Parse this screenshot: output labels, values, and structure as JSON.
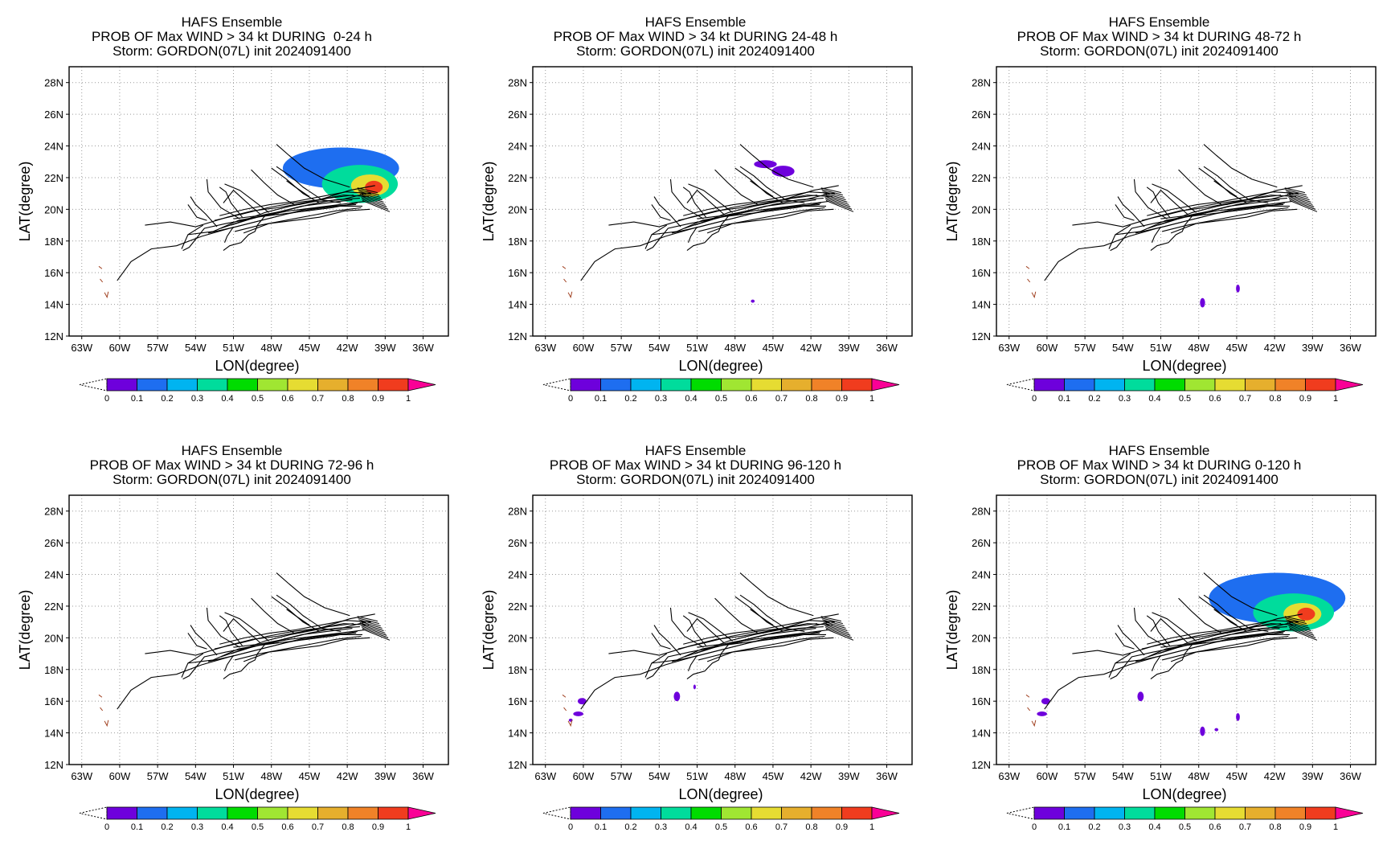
{
  "chart_data": [
    {
      "type": "heatmap",
      "title_line1": "HAFS Ensemble",
      "title_line2": "PROB OF Max WIND > 34 kt DURING  0-24 h",
      "title_line3": "Storm: GORDON(07L) init 2024091400",
      "xlabel": "LON(degree)",
      "ylabel": "LAT(degree)",
      "xlim": [
        -64,
        -34
      ],
      "ylim": [
        12,
        29
      ],
      "x_tick_labels": [
        "63W",
        "60W",
        "57W",
        "54W",
        "51W",
        "48W",
        "45W",
        "42W",
        "39W",
        "36W"
      ],
      "y_tick_labels": [
        "12N",
        "14N",
        "16N",
        "18N",
        "20N",
        "22N",
        "24N",
        "26N",
        "28N"
      ],
      "grid": "dotted",
      "prob_areas": [
        {
          "lon": -42.5,
          "lat": 22.6,
          "rlon": 4.6,
          "rlat": 1.3,
          "p": 0.12
        },
        {
          "lon": -41.0,
          "lat": 21.6,
          "rlon": 3.0,
          "rlat": 1.2,
          "p": 0.35
        },
        {
          "lon": -40.2,
          "lat": 21.5,
          "rlon": 1.5,
          "rlat": 0.7,
          "p": 0.62
        },
        {
          "lon": -39.9,
          "lat": 21.4,
          "rlon": 0.7,
          "rlat": 0.4,
          "p": 0.92
        }
      ]
    },
    {
      "type": "heatmap",
      "title_line1": "HAFS Ensemble",
      "title_line2": "PROB OF Max WIND > 34 kt DURING 24-48 h",
      "title_line3": "Storm: GORDON(07L) init 2024091400",
      "xlabel": "LON(degree)",
      "ylabel": "LAT(degree)",
      "xlim": [
        -64,
        -34
      ],
      "ylim": [
        12,
        29
      ],
      "x_tick_labels": [
        "63W",
        "60W",
        "57W",
        "54W",
        "51W",
        "48W",
        "45W",
        "42W",
        "39W",
        "36W"
      ],
      "y_tick_labels": [
        "12N",
        "14N",
        "16N",
        "18N",
        "20N",
        "22N",
        "24N",
        "26N",
        "28N"
      ],
      "grid": "dotted",
      "prob_areas": [
        {
          "lon": -45.6,
          "lat": 22.85,
          "rlon": 0.9,
          "rlat": 0.25,
          "p": 0.08
        },
        {
          "lon": -44.2,
          "lat": 22.4,
          "rlon": 0.9,
          "rlat": 0.35,
          "p": 0.08
        },
        {
          "lon": -46.6,
          "lat": 14.2,
          "rlon": 0.15,
          "rlat": 0.1,
          "p": 0.05
        }
      ]
    },
    {
      "type": "heatmap",
      "title_line1": "HAFS Ensemble",
      "title_line2": "PROB OF Max WIND > 34 kt DURING 48-72 h",
      "title_line3": "Storm: GORDON(07L) init 2024091400",
      "xlabel": "LON(degree)",
      "ylabel": "LAT(degree)",
      "xlim": [
        -64,
        -34
      ],
      "ylim": [
        12,
        29
      ],
      "x_tick_labels": [
        "63W",
        "60W",
        "57W",
        "54W",
        "51W",
        "48W",
        "45W",
        "42W",
        "39W",
        "36W"
      ],
      "y_tick_labels": [
        "12N",
        "14N",
        "16N",
        "18N",
        "20N",
        "22N",
        "24N",
        "26N",
        "28N"
      ],
      "grid": "dotted",
      "prob_areas": [
        {
          "lon": -47.7,
          "lat": 14.1,
          "rlon": 0.2,
          "rlat": 0.3,
          "p": 0.06
        },
        {
          "lon": -44.9,
          "lat": 15.0,
          "rlon": 0.15,
          "rlat": 0.25,
          "p": 0.06
        }
      ]
    },
    {
      "type": "heatmap",
      "title_line1": "HAFS Ensemble",
      "title_line2": "PROB OF Max WIND > 34 kt DURING 72-96 h",
      "title_line3": "Storm: GORDON(07L) init 2024091400",
      "xlabel": "LON(degree)",
      "ylabel": "LAT(degree)",
      "xlim": [
        -64,
        -34
      ],
      "ylim": [
        12,
        29
      ],
      "x_tick_labels": [
        "63W",
        "60W",
        "57W",
        "54W",
        "51W",
        "48W",
        "45W",
        "42W",
        "39W",
        "36W"
      ],
      "y_tick_labels": [
        "12N",
        "14N",
        "16N",
        "18N",
        "20N",
        "22N",
        "24N",
        "26N",
        "28N"
      ],
      "grid": "dotted",
      "prob_areas": []
    },
    {
      "type": "heatmap",
      "title_line1": "HAFS Ensemble",
      "title_line2": "PROB OF Max WIND > 34 kt DURING 96-120 h",
      "title_line3": "Storm: GORDON(07L) init 2024091400",
      "xlabel": "LON(degree)",
      "ylabel": "LAT(degree)",
      "xlim": [
        -64,
        -34
      ],
      "ylim": [
        12,
        29
      ],
      "x_tick_labels": [
        "63W",
        "60W",
        "57W",
        "54W",
        "51W",
        "48W",
        "45W",
        "42W",
        "39W",
        "36W"
      ],
      "y_tick_labels": [
        "12N",
        "14N",
        "16N",
        "18N",
        "20N",
        "22N",
        "24N",
        "26N",
        "28N"
      ],
      "grid": "dotted",
      "prob_areas": [
        {
          "lon": -60.1,
          "lat": 16.0,
          "rlon": 0.35,
          "rlat": 0.2,
          "p": 0.06
        },
        {
          "lon": -60.4,
          "lat": 15.2,
          "rlon": 0.4,
          "rlat": 0.15,
          "p": 0.06
        },
        {
          "lon": -61.0,
          "lat": 14.8,
          "rlon": 0.15,
          "rlat": 0.1,
          "p": 0.06
        },
        {
          "lon": -52.6,
          "lat": 16.3,
          "rlon": 0.25,
          "rlat": 0.3,
          "p": 0.06
        },
        {
          "lon": -51.2,
          "lat": 16.9,
          "rlon": 0.1,
          "rlat": 0.15,
          "p": 0.06
        }
      ]
    },
    {
      "type": "heatmap",
      "title_line1": "HAFS Ensemble",
      "title_line2": "PROB OF Max WIND > 34 kt DURING 0-120 h",
      "title_line3": "Storm: GORDON(07L) init 2024091400",
      "xlabel": "LON(degree)",
      "ylabel": "LAT(degree)",
      "xlim": [
        -64,
        -34
      ],
      "ylim": [
        12,
        29
      ],
      "x_tick_labels": [
        "63W",
        "60W",
        "57W",
        "54W",
        "51W",
        "48W",
        "45W",
        "42W",
        "39W",
        "36W"
      ],
      "y_tick_labels": [
        "12N",
        "14N",
        "16N",
        "18N",
        "20N",
        "22N",
        "24N",
        "26N",
        "28N"
      ],
      "grid": "dotted",
      "prob_areas": [
        {
          "lon": -41.8,
          "lat": 22.5,
          "rlon": 5.4,
          "rlat": 1.6,
          "p": 0.12
        },
        {
          "lon": -40.5,
          "lat": 21.6,
          "rlon": 3.2,
          "rlat": 1.2,
          "p": 0.35
        },
        {
          "lon": -39.8,
          "lat": 21.5,
          "rlon": 1.5,
          "rlat": 0.7,
          "p": 0.65
        },
        {
          "lon": -39.5,
          "lat": 21.5,
          "rlon": 0.7,
          "rlat": 0.4,
          "p": 0.92
        },
        {
          "lon": -60.1,
          "lat": 16.0,
          "rlon": 0.35,
          "rlat": 0.2,
          "p": 0.06
        },
        {
          "lon": -60.4,
          "lat": 15.2,
          "rlon": 0.4,
          "rlat": 0.15,
          "p": 0.06
        },
        {
          "lon": -52.6,
          "lat": 16.3,
          "rlon": 0.25,
          "rlat": 0.3,
          "p": 0.06
        },
        {
          "lon": -47.7,
          "lat": 14.1,
          "rlon": 0.2,
          "rlat": 0.3,
          "p": 0.06
        },
        {
          "lon": -44.9,
          "lat": 15.0,
          "rlon": 0.15,
          "rlat": 0.25,
          "p": 0.06
        },
        {
          "lon": -46.6,
          "lat": 14.2,
          "rlon": 0.15,
          "rlat": 0.1,
          "p": 0.05
        }
      ]
    }
  ],
  "colorbar": {
    "labels": [
      "0",
      "0.1",
      "0.2",
      "0.3",
      "0.4",
      "0.5",
      "0.6",
      "0.7",
      "0.8",
      "0.9",
      "1"
    ],
    "colors": [
      "#a000c8",
      "#6e00dc",
      "#1e6ef0",
      "#00b4f0",
      "#00dc9c",
      "#00dc00",
      "#a0e632",
      "#e6dc32",
      "#e6af2d",
      "#f08228",
      "#f03c1e",
      "#fa0096"
    ]
  },
  "tracks": {
    "members": [
      [
        [
          -41.0,
          20.7
        ],
        [
          -43,
          20.6
        ],
        [
          -45,
          20.3
        ],
        [
          -47,
          19.9
        ],
        [
          -49,
          19.6
        ],
        [
          -51,
          19.4
        ]
      ],
      [
        [
          -40.5,
          21.0
        ],
        [
          -42.5,
          20.6
        ],
        [
          -44.5,
          20.5
        ],
        [
          -46.5,
          20.2
        ],
        [
          -48.5,
          19.8
        ],
        [
          -50.5,
          19.2
        ],
        [
          -52,
          18.8
        ]
      ],
      [
        [
          -41.2,
          20.4
        ],
        [
          -43.2,
          20.1
        ],
        [
          -45.2,
          19.9
        ],
        [
          -47.2,
          19.7
        ],
        [
          -49.2,
          19.5
        ],
        [
          -51.2,
          19.0
        ]
      ],
      [
        [
          -40.8,
          20.2
        ],
        [
          -42.8,
          20.2
        ],
        [
          -44.8,
          20.0
        ],
        [
          -46.8,
          19.7
        ],
        [
          -48.8,
          19.3
        ],
        [
          -50.8,
          18.9
        ],
        [
          -53,
          18.5
        ]
      ],
      [
        [
          -40.3,
          20.8
        ],
        [
          -42.3,
          20.9
        ],
        [
          -44.3,
          20.6
        ],
        [
          -46.3,
          20.4
        ],
        [
          -48.3,
          20.1
        ],
        [
          -50.3,
          19.7
        ],
        [
          -52.5,
          19.3
        ]
      ],
      [
        [
          -41.5,
          20.9
        ],
        [
          -43.5,
          20.7
        ],
        [
          -45.5,
          20.4
        ],
        [
          -47.5,
          20.1
        ],
        [
          -49.5,
          19.9
        ],
        [
          -51.5,
          19.5
        ],
        [
          -54,
          18.9
        ],
        [
          -56,
          19.2
        ],
        [
          -58,
          19.0
        ]
      ],
      [
        [
          -40.6,
          20.5
        ],
        [
          -42.6,
          20.3
        ],
        [
          -44.6,
          20.1
        ],
        [
          -46.6,
          19.9
        ],
        [
          -48.6,
          19.6
        ],
        [
          -50.6,
          19.3
        ],
        [
          -52.6,
          18.6
        ],
        [
          -54.6,
          18.4
        ]
      ],
      [
        [
          -40.9,
          20.1
        ],
        [
          -42.9,
          19.9
        ],
        [
          -44.9,
          19.6
        ],
        [
          -46.9,
          19.3
        ],
        [
          -48.9,
          19.0
        ],
        [
          -50.9,
          18.6
        ]
      ],
      [
        [
          -41.3,
          20.3
        ],
        [
          -43.3,
          20.2
        ],
        [
          -45.3,
          20.0
        ],
        [
          -47.3,
          19.6
        ],
        [
          -49.3,
          19.2
        ],
        [
          -51.3,
          18.8
        ],
        [
          -53.5,
          18.3
        ],
        [
          -55.5,
          17.7
        ],
        [
          -57.5,
          17.5
        ],
        [
          -59.1,
          16.7
        ],
        [
          -60.2,
          15.5
        ]
      ],
      [
        [
          -40.1,
          21.0
        ],
        [
          -42.1,
          21.1
        ],
        [
          -44.1,
          20.8
        ],
        [
          -46.1,
          20.5
        ],
        [
          -48.1,
          20.3
        ],
        [
          -50.1,
          20.0
        ],
        [
          -52.1,
          19.6
        ]
      ],
      [
        [
          -41.6,
          20.6
        ],
        [
          -43.6,
          20.4
        ],
        [
          -45.6,
          20.2
        ],
        [
          -47.6,
          19.8
        ],
        [
          -49.6,
          19.4
        ],
        [
          -51.6,
          19.1
        ],
        [
          -53.3,
          18.8
        ],
        [
          -54.5,
          17.6
        ],
        [
          -55,
          17.4
        ]
      ],
      [
        [
          -41.8,
          21.4
        ],
        [
          -43.8,
          21.9
        ],
        [
          -45.4,
          22.6
        ],
        [
          -46.6,
          23.4
        ],
        [
          -47.6,
          24.1
        ]
      ],
      [
        [
          -42.5,
          20.4
        ],
        [
          -44,
          20.6
        ],
        [
          -45.5,
          21.4
        ],
        [
          -46.5,
          22.1
        ],
        [
          -47.6,
          22.7
        ]
      ],
      [
        [
          -44.2,
          20.4
        ],
        [
          -45.5,
          21.0
        ],
        [
          -46.8,
          21.9
        ],
        [
          -48,
          22.6
        ]
      ],
      [
        [
          -46.2,
          20.3
        ],
        [
          -47.5,
          20.9
        ],
        [
          -48.6,
          21.7
        ],
        [
          -49.6,
          22.5
        ]
      ],
      [
        [
          -48.2,
          19.8
        ],
        [
          -49.5,
          20.6
        ],
        [
          -50.5,
          21.2
        ],
        [
          -51.7,
          21.6
        ]
      ],
      [
        [
          -50.3,
          19.5
        ],
        [
          -51.2,
          20.4
        ],
        [
          -51.6,
          21.1
        ],
        [
          -52.1,
          21.4
        ]
      ],
      [
        [
          -50.5,
          19.4
        ],
        [
          -52,
          20.1
        ],
        [
          -53,
          21.1
        ],
        [
          -53.1,
          21.9
        ]
      ],
      [
        [
          -52.3,
          18.9
        ],
        [
          -53.2,
          19.7
        ],
        [
          -54.0,
          20.3
        ],
        [
          -54.4,
          20.8
        ]
      ],
      [
        [
          -53.1,
          19.3
        ],
        [
          -53.9,
          19.5
        ],
        [
          -54.6,
          20.3
        ]
      ],
      [
        [
          -51.0,
          18.9
        ],
        [
          -51.5,
          18.3
        ],
        [
          -51.7,
          17.9
        ]
      ],
      [
        [
          -53.4,
          19.0
        ],
        [
          -54.6,
          18.4
        ],
        [
          -55.1,
          17.5
        ]
      ],
      [
        [
          -47.4,
          19.7
        ],
        [
          -48.5,
          19.6
        ],
        [
          -49.1,
          19.0
        ],
        [
          -49.3,
          18.6
        ],
        [
          -49.8,
          18.4
        ],
        [
          -50.4,
          17.9
        ],
        [
          -51.3,
          17.7
        ],
        [
          -51.8,
          17.4
        ]
      ],
      [
        [
          -39.8,
          21.5
        ],
        [
          -41.8,
          21.2
        ],
        [
          -43.8,
          20.7
        ],
        [
          -45.8,
          20.3
        ]
      ],
      [
        [
          -40.2,
          20.0
        ],
        [
          -42.2,
          19.9
        ],
        [
          -44.2,
          19.5
        ],
        [
          -46.2,
          19.3
        ],
        [
          -48.2,
          19.1
        ],
        [
          -50.2,
          18.5
        ]
      ],
      [
        [
          -45,
          20.8
        ],
        [
          -46.1,
          21.4
        ],
        [
          -46.8,
          21.8
        ]
      ],
      [
        [
          -48.9,
          19.7
        ],
        [
          -49.9,
          20.4
        ],
        [
          -51.0,
          21.2
        ],
        [
          -51.8,
          20.4
        ]
      ]
    ],
    "fanned_end": true,
    "islands": [
      [
        [
          -61.65,
          16.4
        ],
        [
          -61.4,
          16.25
        ]
      ],
      [
        [
          -61.55,
          15.6
        ],
        [
          -61.35,
          15.4
        ]
      ],
      [
        [
          -61.2,
          14.75
        ],
        [
          -61.0,
          14.45
        ],
        [
          -60.9,
          14.8
        ]
      ]
    ]
  }
}
